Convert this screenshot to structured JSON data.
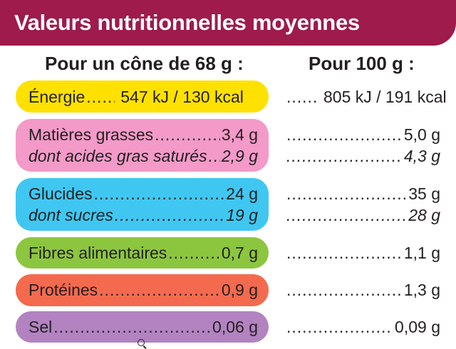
{
  "title": "Valeurs nutritionnelles moyennes",
  "headers": {
    "per_portion": "Pour un cône de 68 g :",
    "per_100g": "Pour 100 g :"
  },
  "colors": {
    "title_bar": "#9e1b4b",
    "energie": "#ffe100",
    "matieres_grasses": "#f39ac8",
    "glucides": "#3fc7f2",
    "fibres": "#8cc63f",
    "proteines": "#f46a4e",
    "sel": "#b283c0"
  },
  "rows": {
    "energie": {
      "label": "Énergie",
      "portion": "547 kJ / 130 kcal",
      "per100": "805 kJ / 191 kcal"
    },
    "matieres_grasses": {
      "label": "Matières grasses",
      "portion": "3,4 g",
      "per100": "5,0 g"
    },
    "acides_gras_satures": {
      "label": "dont acides gras saturés",
      "portion": "2,9 g",
      "per100": "4,3 g"
    },
    "glucides": {
      "label": "Glucides",
      "portion": "24 g",
      "per100": "35 g"
    },
    "sucres": {
      "label": "dont sucres",
      "portion": "19 g",
      "per100": "28 g"
    },
    "fibres": {
      "label": "Fibres alimentaires",
      "portion": "0,7 g",
      "per100": "1,1 g"
    },
    "proteines": {
      "label": "Protéines",
      "portion": "0,9 g",
      "per100": "1,3 g"
    },
    "sel": {
      "label": "Sel",
      "portion": "0,06 g",
      "per100": "0,09 g"
    }
  },
  "icons": {
    "cursor": "zoom-in-icon"
  }
}
